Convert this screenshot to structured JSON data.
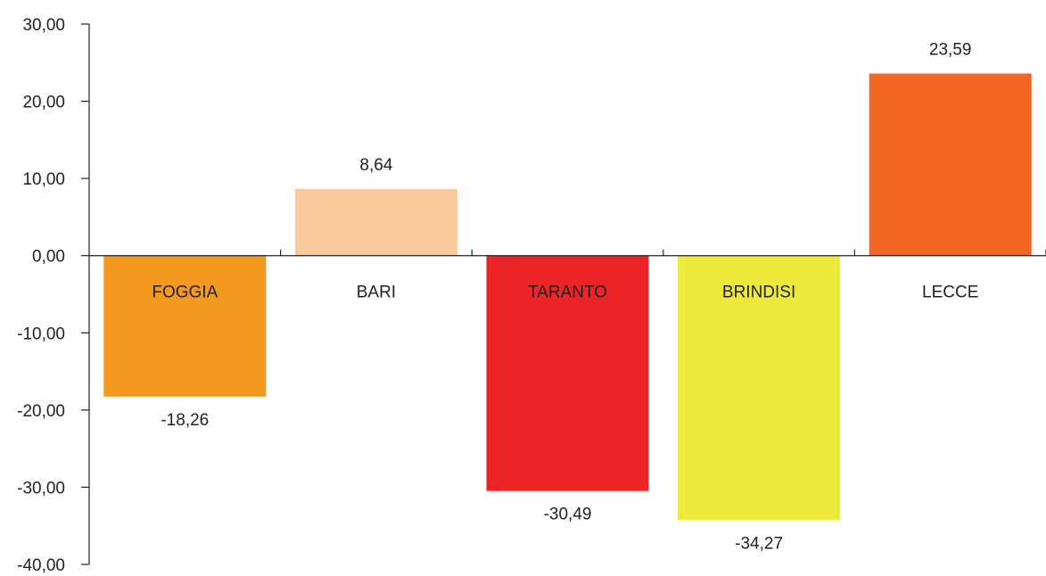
{
  "chart_data": {
    "type": "bar",
    "categories": [
      "FOGGIA",
      "BARI",
      "TARANTO",
      "BRINDISI",
      "LECCE"
    ],
    "values": [
      -18.26,
      8.64,
      -30.49,
      -34.27,
      23.59
    ],
    "value_labels": [
      "-18,26",
      "8,64",
      "-30,49",
      "-34,27",
      "23,59"
    ],
    "colors": [
      "#f4991f",
      "#f9cb9c",
      "#ed2427",
      "#edea3b",
      "#f26522"
    ],
    "yticks": [
      30,
      20,
      10,
      0,
      -10,
      -20,
      -30,
      -40
    ],
    "ytick_labels": [
      "30,00",
      "20,00",
      "10,00",
      "0,00",
      "-10,00",
      "-20,00",
      "-30,00",
      "-40,00"
    ],
    "ylim": [
      -40,
      30
    ],
    "grid": false,
    "legend": "none",
    "title": "",
    "xlabel": "",
    "ylabel": ""
  }
}
